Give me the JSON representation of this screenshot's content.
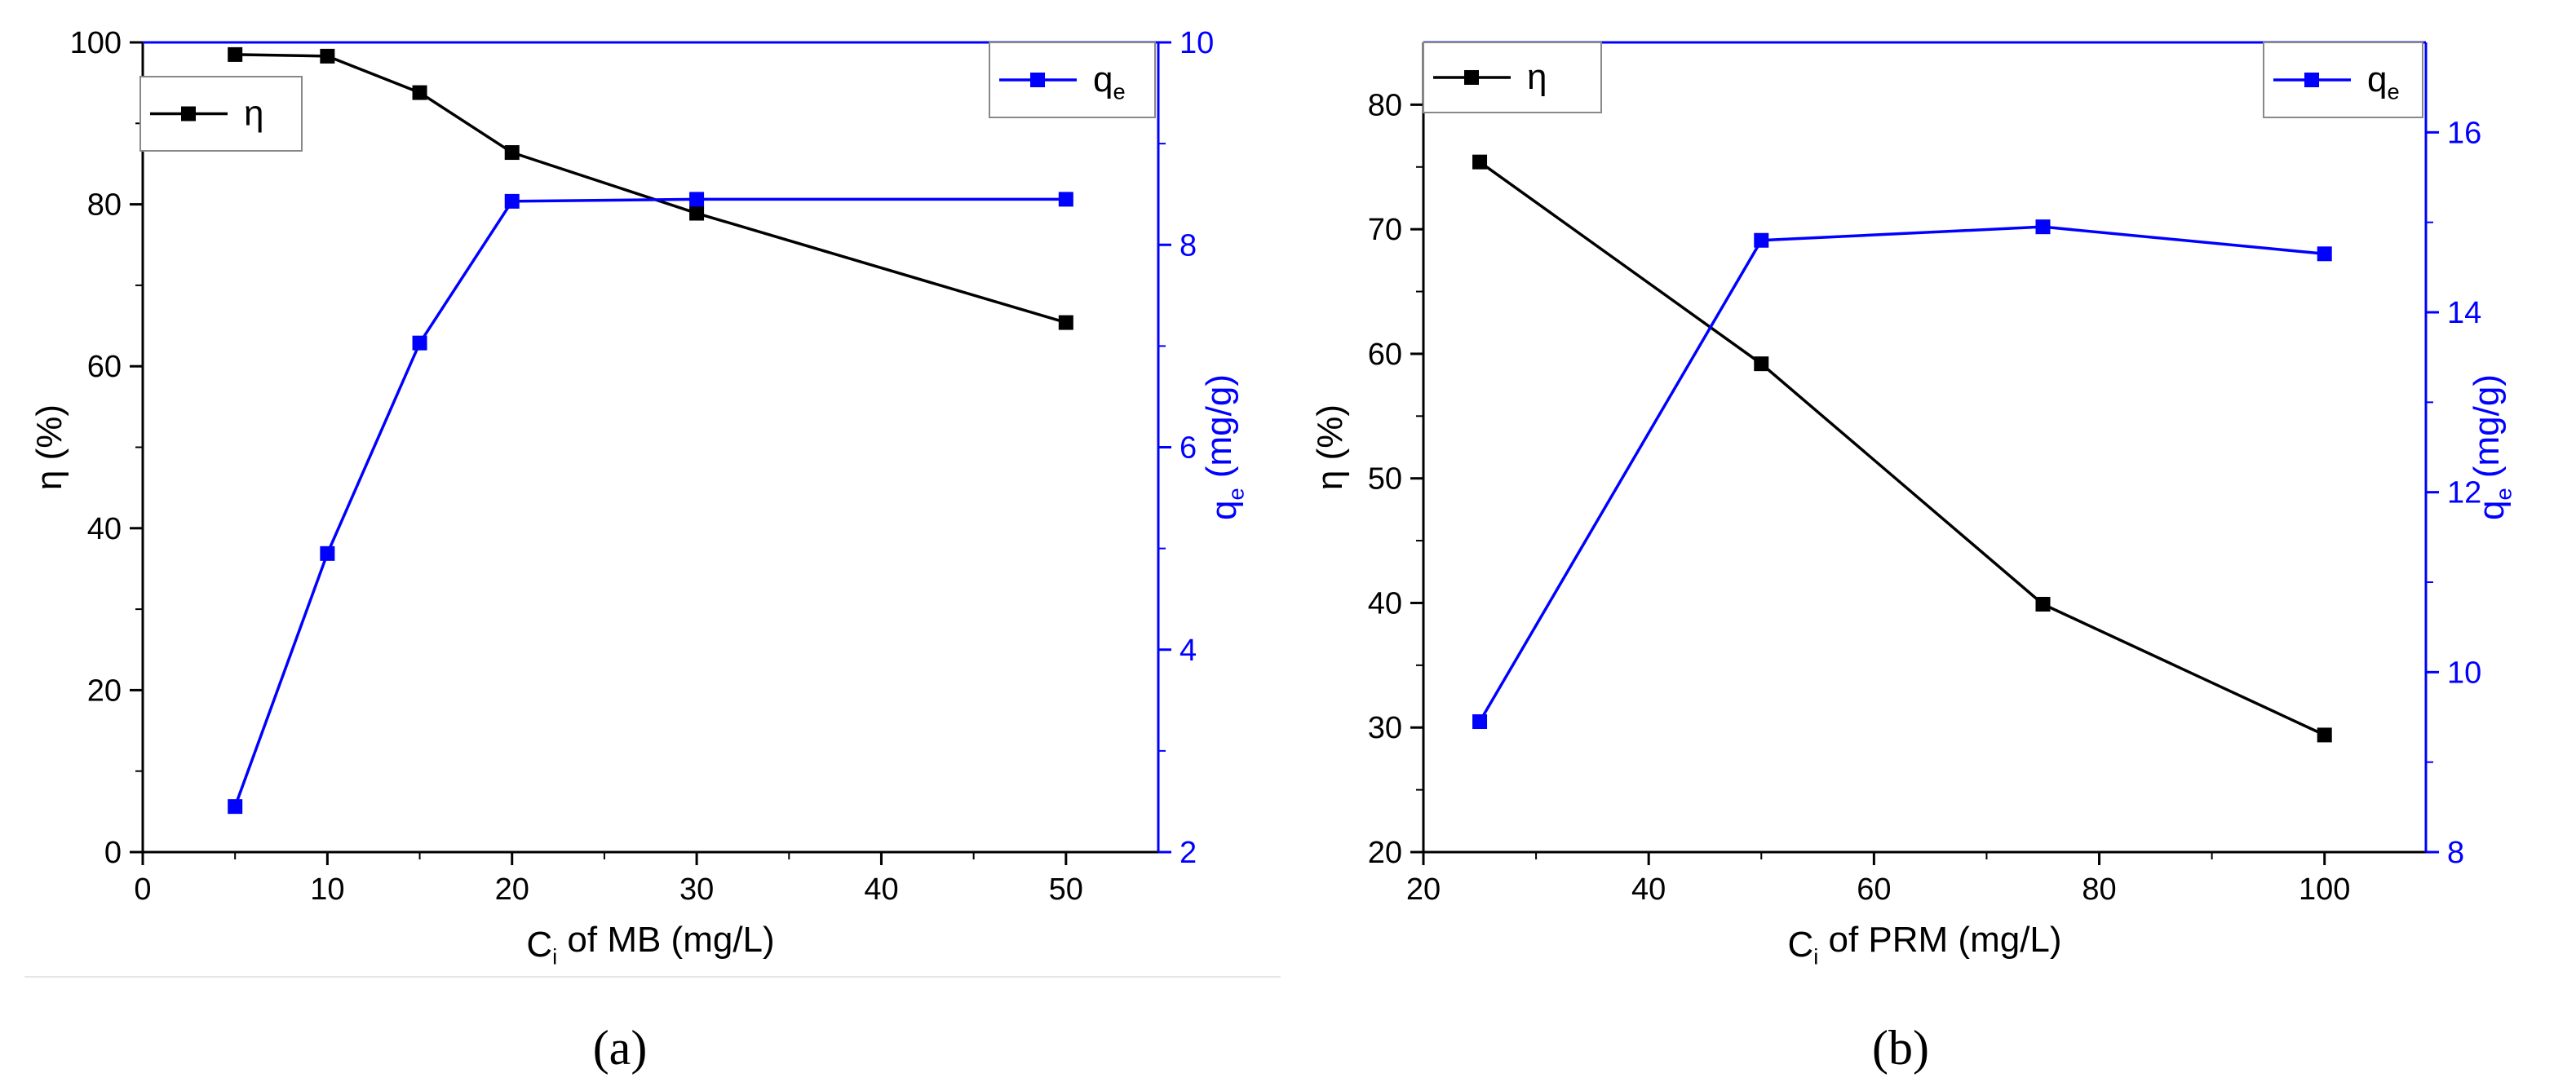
{
  "colors": {
    "eta": "#000000",
    "qe": "#0000ff",
    "axis_right": "#0000ff",
    "frame": "#000000"
  },
  "chart_data": [
    {
      "type": "line",
      "panel_label": "(a)",
      "x": [
        5,
        10,
        15,
        20,
        30,
        50
      ],
      "xlim": [
        0,
        55
      ],
      "x_ticks": [
        "0",
        "10",
        "20",
        "30",
        "40",
        "50"
      ],
      "xlabel": {
        "main": "C",
        "sub": "i",
        "rest": " of MB (mg/L)"
      },
      "ylim_left": [
        0,
        100
      ],
      "y_ticks_left": [
        "0",
        "20",
        "40",
        "60",
        "80",
        "100"
      ],
      "ylabel_left": "η (%)",
      "ylim_right": [
        2,
        10
      ],
      "y_ticks_right": [
        "2",
        "4",
        "6",
        "8",
        "10"
      ],
      "ylabel_right": {
        "main": "q",
        "sub": "e",
        "rest": " (mg/g)"
      },
      "series": [
        {
          "name": "η",
          "axis": "left",
          "values": [
            98.5,
            98.3,
            93.8,
            86.4,
            78.9,
            65.4
          ]
        },
        {
          "name": "q",
          "name_sub": "e",
          "axis": "right",
          "values": [
            2.45,
            4.95,
            7.03,
            8.43,
            8.45,
            8.45
          ]
        }
      ]
    },
    {
      "type": "line",
      "panel_label": "(b)",
      "x": [
        25,
        50,
        75,
        100
      ],
      "xlim": [
        20,
        109
      ],
      "x_ticks": [
        "20",
        "40",
        "60",
        "80",
        "100"
      ],
      "xlabel": {
        "main": "C",
        "sub": "i",
        "rest": " of PRM (mg/L)"
      },
      "ylim_left": [
        20,
        85
      ],
      "y_ticks_left": [
        "20",
        "30",
        "40",
        "50",
        "60",
        "70",
        "80"
      ],
      "ylabel_left": "η (%)",
      "ylim_right": [
        8,
        17
      ],
      "y_ticks_right": [
        "8",
        "10",
        "12",
        "14",
        "16"
      ],
      "ylabel_right": {
        "main": "q",
        "sub": "e",
        "rest": " (mg/g)"
      },
      "series": [
        {
          "name": "η",
          "axis": "left",
          "values": [
            75.4,
            59.2,
            39.9,
            29.4
          ]
        },
        {
          "name": "q",
          "name_sub": "e",
          "axis": "right",
          "values": [
            9.45,
            14.8,
            14.95,
            14.65
          ]
        }
      ]
    }
  ]
}
